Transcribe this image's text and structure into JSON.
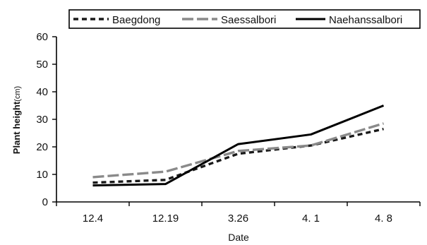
{
  "chart_data": {
    "type": "line",
    "categories": [
      "12.4",
      "12.19",
      "3.26",
      "4. 1",
      "4. 8"
    ],
    "series": [
      {
        "name": "Baegdong",
        "values": [
          7,
          8,
          17.5,
          20.5,
          26.5
        ],
        "color": "#1a1a1a",
        "style": "dotted-bold"
      },
      {
        "name": "Saessalbori",
        "values": [
          9,
          11,
          18.5,
          20.5,
          28.5
        ],
        "color": "#8a8a8a",
        "style": "dashed"
      },
      {
        "name": "Naehanssalbori",
        "values": [
          6,
          6.5,
          21,
          24.5,
          35
        ],
        "color": "#000000",
        "style": "solid"
      }
    ],
    "xlabel": "Date",
    "ylabel": "Plant height",
    "ylabel_unit": "(cm)",
    "ylim": [
      0,
      60
    ],
    "yticks": [
      0,
      10,
      20,
      30,
      40,
      50,
      60
    ],
    "grid": false,
    "legend_position": "top"
  }
}
